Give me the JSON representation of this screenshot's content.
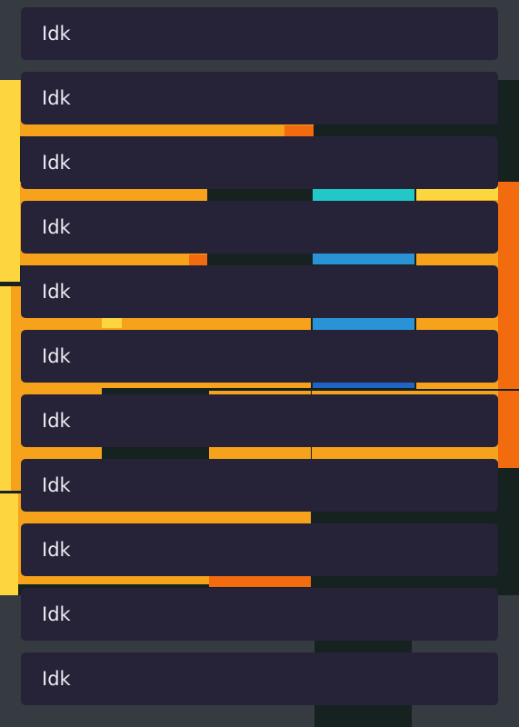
{
  "items": [
    "Idk",
    "Idk",
    "Idk",
    "Idk",
    "Idk",
    "Idk",
    "Idk",
    "Idk",
    "Idk",
    "Idk",
    "Idk"
  ]
}
